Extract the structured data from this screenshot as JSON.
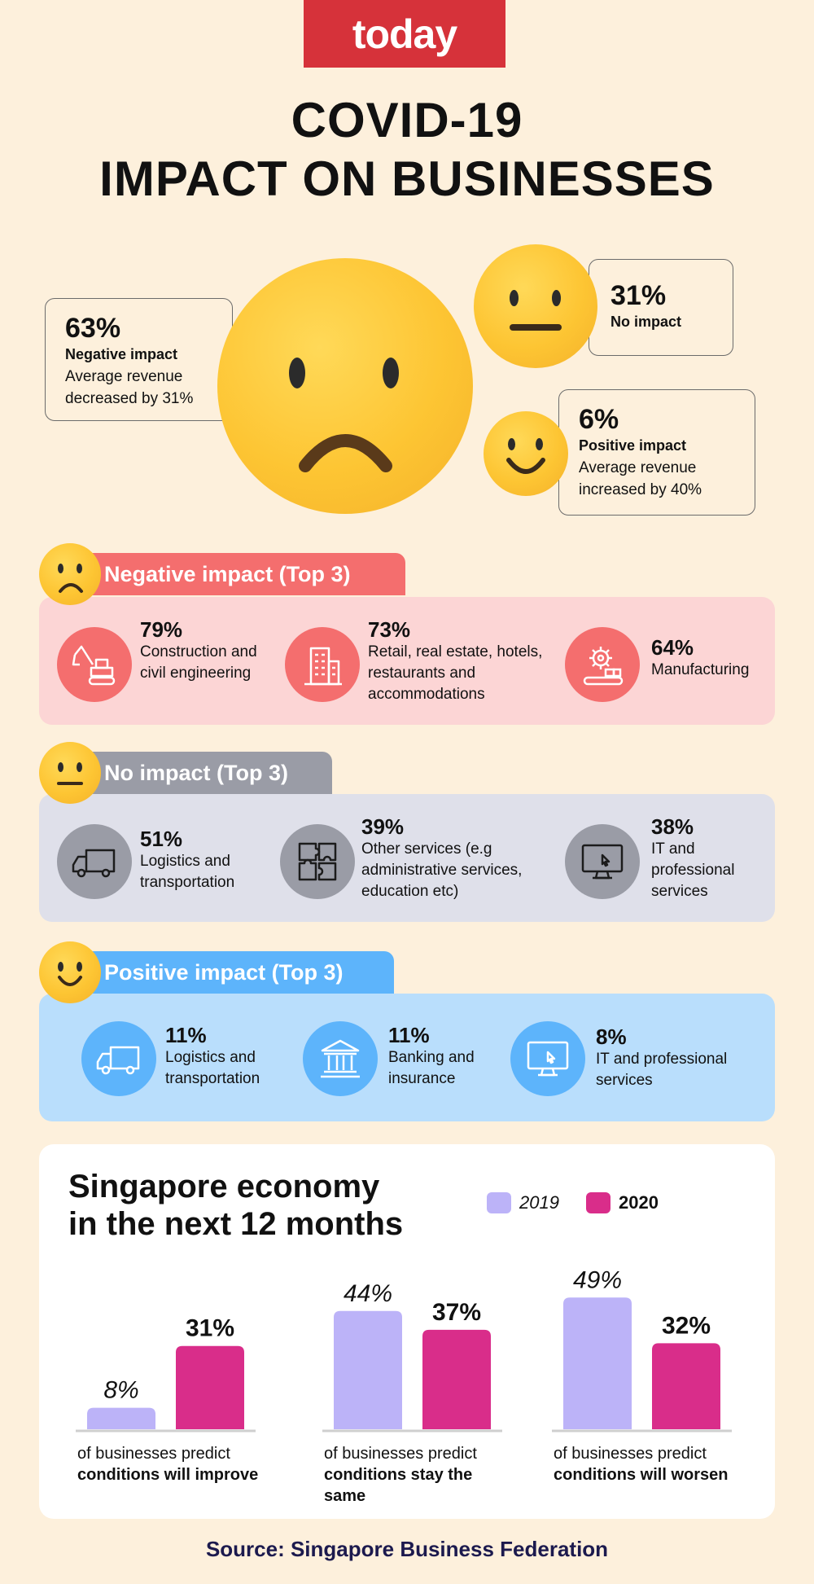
{
  "brand": "today",
  "title": {
    "line1": "COVID-19",
    "line2": "IMPACT ON BUSINESSES"
  },
  "overview": {
    "negative": {
      "pct": "63%",
      "label": "Negative impact",
      "desc": "Average revenue decreased by 31%"
    },
    "none": {
      "pct": "31%",
      "label": "No impact"
    },
    "positive": {
      "pct": "6%",
      "label": "Positive impact",
      "desc": "Average revenue increased by 40%"
    }
  },
  "negative_top3": {
    "heading": "Negative impact (Top 3)",
    "items": [
      {
        "pct": "79%",
        "text": "Construction and civil engineering",
        "icon": "excavator-icon"
      },
      {
        "pct": "73%",
        "text": "Retail, real estate, hotels, restaurants and accommodations",
        "icon": "building-icon"
      },
      {
        "pct": "64%",
        "text": "Manufacturing",
        "icon": "factory-gear-icon"
      }
    ]
  },
  "none_top3": {
    "heading": "No impact (Top 3)",
    "items": [
      {
        "pct": "51%",
        "text": "Logistics and transportation",
        "icon": "truck-icon"
      },
      {
        "pct": "39%",
        "text": "Other services (e.g administrative services, education etc)",
        "icon": "puzzle-icon"
      },
      {
        "pct": "38%",
        "text": "IT and professional services",
        "icon": "monitor-icon"
      }
    ]
  },
  "positive_top3": {
    "heading": "Positive impact (Top 3)",
    "items": [
      {
        "pct": "11%",
        "text": "Logistics and transportation",
        "icon": "truck-icon"
      },
      {
        "pct": "11%",
        "text": "Banking and insurance",
        "icon": "bank-icon"
      },
      {
        "pct": "8%",
        "text": "IT and professional services",
        "icon": "monitor-icon"
      }
    ]
  },
  "colors": {
    "brand_red": "#d6323a",
    "negative_panel": "#fcd5d5",
    "negative_tab": "#f46e6e",
    "none_panel": "#dfe0ea",
    "none_tab": "#9a9ca6",
    "positive_panel": "#b9defc",
    "positive_tab": "#5db4fb",
    "bar_2019": "#bcb3f8",
    "bar_2020": "#d92d8a"
  },
  "chart_data": {
    "type": "bar",
    "title": "Singapore economy in the next 12 months",
    "title_line1": "Singapore economy",
    "title_line2": "in the next 12 months",
    "categories": [
      {
        "pre": "of businesses predict",
        "bold": "conditions will improve"
      },
      {
        "pre": "of businesses predict",
        "bold": "conditions stay the same"
      },
      {
        "pre": "of businesses predict",
        "bold": "conditions will worsen"
      }
    ],
    "series": [
      {
        "name": "2019",
        "values": [
          8,
          44,
          49
        ],
        "labels": [
          "8%",
          "44%",
          "49%"
        ]
      },
      {
        "name": "2020",
        "values": [
          31,
          37,
          32
        ],
        "labels": [
          "31%",
          "37%",
          "32%"
        ]
      }
    ],
    "ylim": [
      0,
      50
    ],
    "xlabel": "",
    "ylabel": ""
  },
  "source": "Source: Singapore Business Federation"
}
